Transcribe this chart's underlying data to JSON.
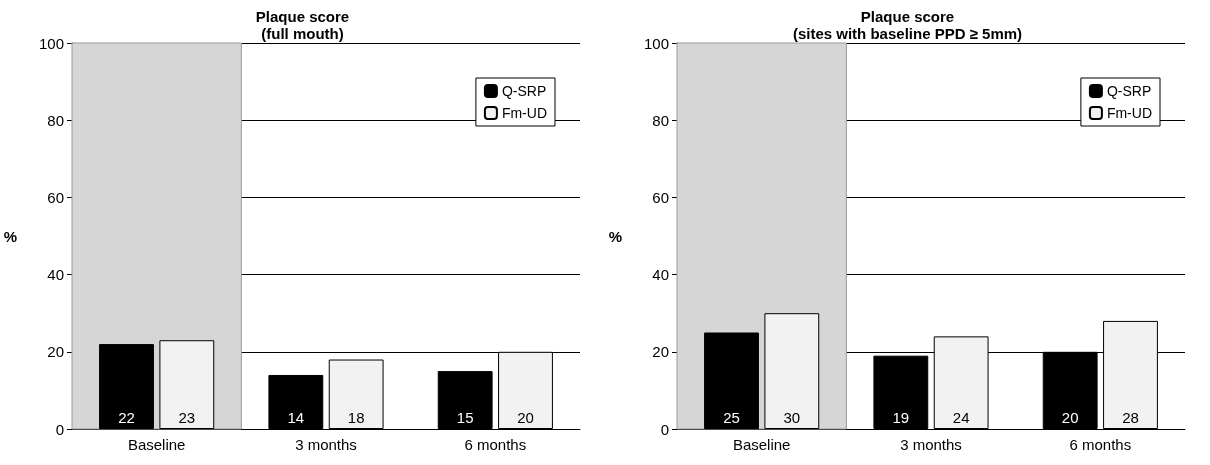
{
  "chart_data": [
    {
      "type": "bar",
      "title": "Plaque score",
      "subtitle": "(full mouth)",
      "ylabel": "%",
      "categories": [
        "Baseline",
        "3 months",
        "6 months"
      ],
      "series": [
        {
          "name": "Q-SRP",
          "color": "#000000",
          "values": [
            22,
            14,
            15
          ]
        },
        {
          "name": "Fm-UD",
          "color": "#f2f2f2",
          "values": [
            23,
            18,
            20
          ]
        }
      ],
      "ylim": [
        0,
        100
      ],
      "yticks": [
        0,
        20,
        40,
        60,
        80,
        100
      ],
      "grid": "y",
      "legend": "top right",
      "data_labels": true,
      "bands": [
        {
          "axis": "x",
          "from": "Baseline",
          "to": "Baseline",
          "color": "#d6d6d6"
        }
      ]
    },
    {
      "type": "bar",
      "title": "Plaque score",
      "subtitle": "(sites with baseline PPD ≥ 5mm)",
      "ylabel": "%",
      "categories": [
        "Baseline",
        "3 months",
        "6 months"
      ],
      "series": [
        {
          "name": "Q-SRP",
          "color": "#000000",
          "values": [
            25,
            19,
            20
          ]
        },
        {
          "name": "Fm-UD",
          "color": "#f2f2f2",
          "values": [
            30,
            24,
            28
          ]
        }
      ],
      "ylim": [
        0,
        100
      ],
      "yticks": [
        0,
        20,
        40,
        60,
        80,
        100
      ],
      "grid": "y",
      "legend": "top right",
      "data_labels": true,
      "bands": [
        {
          "axis": "x",
          "from": "Baseline",
          "to": "Baseline",
          "color": "#d6d6d6"
        }
      ]
    }
  ]
}
